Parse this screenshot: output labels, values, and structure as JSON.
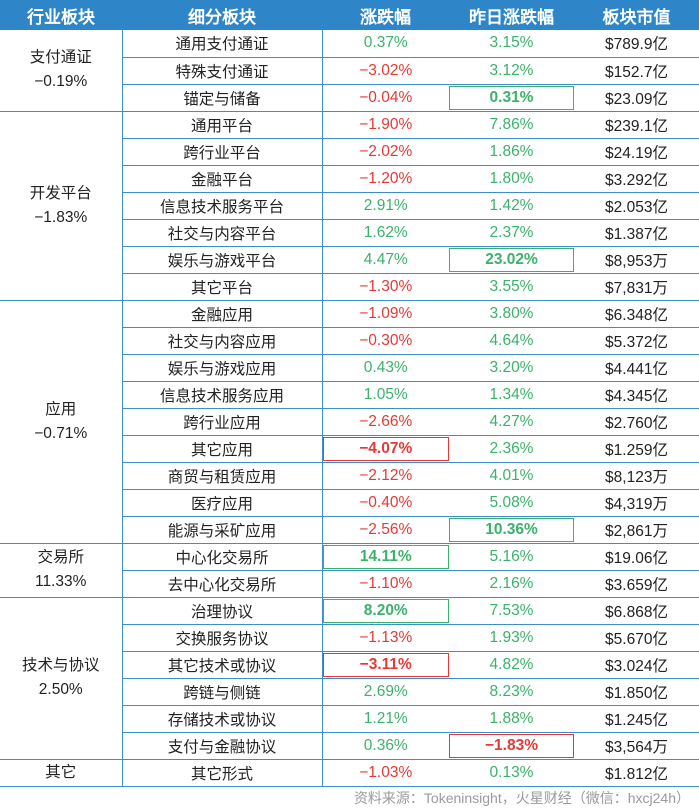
{
  "headers": [
    "行业板块",
    "细分板块",
    "涨跌幅",
    "昨日涨跌幅",
    "板块市值"
  ],
  "groups": [
    {
      "name": "支付通证",
      "pct": "−0.19%",
      "rows": [
        {
          "sub": "通用支付通证",
          "chg": "0.37%",
          "chg_dir": "up",
          "prev": "3.15%",
          "prev_dir": "up",
          "cap": "$789.9亿"
        },
        {
          "sub": "特殊支付通证",
          "chg": "−3.02%",
          "chg_dir": "down",
          "prev": "3.12%",
          "prev_dir": "up",
          "cap": "$152.7亿"
        },
        {
          "sub": "锚定与储备",
          "chg": "−0.04%",
          "chg_dir": "down",
          "prev": "0.31%",
          "prev_dir": "up",
          "prev_hl": "g",
          "cap": "$23.09亿"
        }
      ]
    },
    {
      "name": "开发平台",
      "pct": "−1.83%",
      "rows": [
        {
          "sub": "通用平台",
          "chg": "−1.90%",
          "chg_dir": "down",
          "prev": "7.86%",
          "prev_dir": "up",
          "cap": "$239.1亿"
        },
        {
          "sub": "跨行业平台",
          "chg": "−2.02%",
          "chg_dir": "down",
          "prev": "1.86%",
          "prev_dir": "up",
          "cap": "$24.19亿"
        },
        {
          "sub": "金融平台",
          "chg": "−1.20%",
          "chg_dir": "down",
          "prev": "1.80%",
          "prev_dir": "up",
          "cap": "$3.292亿"
        },
        {
          "sub": "信息技术服务平台",
          "chg": "2.91%",
          "chg_dir": "up",
          "prev": "1.42%",
          "prev_dir": "up",
          "cap": "$2.053亿"
        },
        {
          "sub": "社交与内容平台",
          "chg": "1.62%",
          "chg_dir": "up",
          "prev": "2.37%",
          "prev_dir": "up",
          "cap": "$1.387亿"
        },
        {
          "sub": "娱乐与游戏平台",
          "chg": "4.47%",
          "chg_dir": "up",
          "prev": "23.02%",
          "prev_dir": "up",
          "prev_hl": "g",
          "cap": "$8,953万"
        },
        {
          "sub": "其它平台",
          "chg": "−1.30%",
          "chg_dir": "down",
          "prev": "3.55%",
          "prev_dir": "up",
          "cap": "$7,831万"
        }
      ]
    },
    {
      "name": "应用",
      "pct": "−0.71%",
      "rows": [
        {
          "sub": "金融应用",
          "chg": "−1.09%",
          "chg_dir": "down",
          "prev": "3.80%",
          "prev_dir": "up",
          "cap": "$6.348亿"
        },
        {
          "sub": "社交与内容应用",
          "chg": "−0.30%",
          "chg_dir": "down",
          "prev": "4.64%",
          "prev_dir": "up",
          "cap": "$5.372亿"
        },
        {
          "sub": "娱乐与游戏应用",
          "chg": "0.43%",
          "chg_dir": "up",
          "prev": "3.20%",
          "prev_dir": "up",
          "cap": "$4.441亿"
        },
        {
          "sub": "信息技术服务应用",
          "chg": "1.05%",
          "chg_dir": "up",
          "prev": "1.34%",
          "prev_dir": "up",
          "cap": "$4.345亿"
        },
        {
          "sub": "跨行业应用",
          "chg": "−2.66%",
          "chg_dir": "down",
          "prev": "4.27%",
          "prev_dir": "up",
          "cap": "$2.760亿"
        },
        {
          "sub": "其它应用",
          "chg": "−4.07%",
          "chg_dir": "down",
          "chg_hl": "r",
          "prev": "2.36%",
          "prev_dir": "up",
          "cap": "$1.259亿"
        },
        {
          "sub": "商贸与租赁应用",
          "chg": "−2.12%",
          "chg_dir": "down",
          "prev": "4.01%",
          "prev_dir": "up",
          "cap": "$8,123万"
        },
        {
          "sub": "医疗应用",
          "chg": "−0.40%",
          "chg_dir": "down",
          "prev": "5.08%",
          "prev_dir": "up",
          "cap": "$4,319万"
        },
        {
          "sub": "能源与采矿应用",
          "chg": "−2.56%",
          "chg_dir": "down",
          "prev": "10.36%",
          "prev_dir": "up",
          "prev_hl": "g",
          "cap": "$2,861万"
        }
      ]
    },
    {
      "name": "交易所",
      "pct": "11.33%",
      "rows": [
        {
          "sub": "中心化交易所",
          "chg": "14.11%",
          "chg_dir": "up",
          "chg_hl": "g",
          "prev": "5.16%",
          "prev_dir": "up",
          "cap": "$19.06亿"
        },
        {
          "sub": "去中心化交易所",
          "chg": "−1.10%",
          "chg_dir": "down",
          "prev": "2.16%",
          "prev_dir": "up",
          "cap": "$3.659亿"
        }
      ]
    },
    {
      "name": "技术与协议",
      "pct": "2.50%",
      "rows": [
        {
          "sub": "治理协议",
          "chg": "8.20%",
          "chg_dir": "up",
          "chg_hl": "g",
          "prev": "7.53%",
          "prev_dir": "up",
          "cap": "$6.868亿"
        },
        {
          "sub": "交换服务协议",
          "chg": "−1.13%",
          "chg_dir": "down",
          "prev": "1.93%",
          "prev_dir": "up",
          "cap": "$5.670亿"
        },
        {
          "sub": "其它技术或协议",
          "chg": "−3.11%",
          "chg_dir": "down",
          "chg_hl": "r",
          "prev": "4.82%",
          "prev_dir": "up",
          "cap": "$3.024亿"
        },
        {
          "sub": "跨链与侧链",
          "chg": "2.69%",
          "chg_dir": "up",
          "prev": "8.23%",
          "prev_dir": "up",
          "cap": "$1.850亿"
        },
        {
          "sub": "存储技术或协议",
          "chg": "1.21%",
          "chg_dir": "up",
          "prev": "1.88%",
          "prev_dir": "up",
          "cap": "$1.245亿"
        },
        {
          "sub": "支付与金融协议",
          "chg": "0.36%",
          "chg_dir": "up",
          "prev": "−1.83%",
          "prev_dir": "down",
          "prev_hl": "r",
          "cap": "$3,564万"
        }
      ]
    },
    {
      "name": "其它",
      "pct": "",
      "rows": [
        {
          "sub": "其它形式",
          "chg": "−1.03%",
          "chg_dir": "down",
          "prev": "0.13%",
          "prev_dir": "up",
          "cap": "$1.812亿"
        }
      ]
    }
  ],
  "source": "资料来源：Tokeninsight，火星财经（微信：hxcj24h）",
  "colors": {
    "header_bg": "#2e86c8",
    "up": "#3bb26b",
    "down": "#e53935",
    "line": "#3d8fcc"
  }
}
